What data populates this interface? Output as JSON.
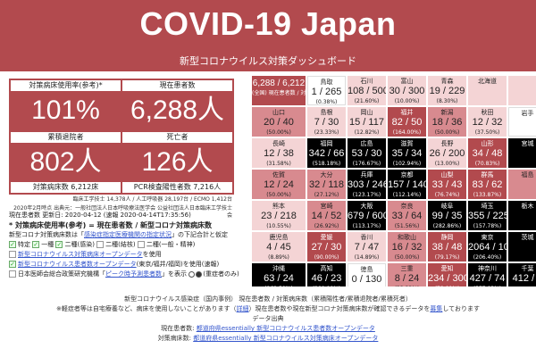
{
  "header": {
    "title": "COVID-19 Japan",
    "subtitle": "新型コロナウイルス対策ダッシュボード"
  },
  "stats": {
    "bed_rate_label": "対策病床使用率(参考)*",
    "bed_rate_value": "101%",
    "current_patients_label": "現在患者数",
    "current_patients_value": "6,288人",
    "discharged_label": "累積退院者",
    "discharged_value": "802人",
    "deaths_label": "死亡者",
    "deaths_value": "126人",
    "beds_sub": "対策病床数 6,212床",
    "pcr_sub": "PCR検査陽性者数 7,216人",
    "footnote1": "臨床工学技士 14,378人 / 人工呼吸器 28,197台 / ECMO 1,412台",
    "footnote2": "2020年2月時点 出典元：一般社団法人日本呼吸療法医学会 公益社団法人日本臨床工学技士会"
  },
  "info": {
    "updated": "現在患者数 更新日: 2020-04-12 (速報 2020-04-14T17:35:56)",
    "definition": "* 対策病床使用率(参考) = 現在患者数 / 新型コロナ対策病床数",
    "source_line_pre": "新型コロナ対策病床数は「",
    "source_link": "感染症指定医療機関の指定状況",
    "source_line_post": "」の下記合計と仮定",
    "options": [
      "特定",
      "一種",
      "二種(感染)",
      "二種(結核)",
      "二種(一般・精神)"
    ],
    "open_data_link": "新型コロナウイルス対策病床オープンデータ",
    "open_data_post": "を使用",
    "patients_link": "新型コロナウイルス患者数オープンデータ",
    "patients_post": "(東京/福井/福岡)を使用(速報)",
    "jmap_pre": "日本医師会総合政策研究機構「",
    "jmap_link": "ピーク時予測患者数",
    "jmap_post": "」を表示",
    "radio1": "(重症者のみ)"
  },
  "prefectures": [
    {
      "name": "6,288 / 6,212",
      "val": "",
      "pct": "(全国) 現在患者数 / 対策病床数*",
      "level": "summary"
    },
    {
      "name": "鳥取",
      "val": "1 / 265",
      "pct": "(0.38%)",
      "level": "lv0"
    },
    {
      "name": "石川",
      "val": "108 / 500",
      "pct": "(21.60%)",
      "level": "lv1"
    },
    {
      "name": "富山",
      "val": "30 / 300",
      "pct": "(10.00%)",
      "level": "lv1"
    },
    {
      "name": "青森",
      "val": "19 / 229",
      "pct": "(8.30%)",
      "level": "lv1"
    },
    {
      "name": "北海道",
      "val": "",
      "pct": "",
      "level": "lv1"
    },
    {
      "name": "",
      "val": "",
      "pct": "",
      "level": "lv1"
    },
    {
      "name": "山口",
      "val": "20 / 40",
      "pct": "(50.00%)",
      "level": "lv2"
    },
    {
      "name": "島根",
      "val": "7 / 30",
      "pct": "(23.33%)",
      "level": "lv1"
    },
    {
      "name": "岡山",
      "val": "15 / 117",
      "pct": "(12.82%)",
      "level": "lv1"
    },
    {
      "name": "福井",
      "val": "82 / 50",
      "pct": "(164.00%)",
      "level": "lv3"
    },
    {
      "name": "新潟",
      "val": "18 / 36",
      "pct": "(50.00%)",
      "level": "lv2"
    },
    {
      "name": "秋田",
      "val": "12 / 32",
      "pct": "(37.50%)",
      "level": "lv1"
    },
    {
      "name": "岩手",
      "val": "",
      "pct": "",
      "level": "lv0"
    },
    {
      "name": "長崎",
      "val": "12 / 38",
      "pct": "(31.58%)",
      "level": "lv1"
    },
    {
      "name": "福岡",
      "val": "342 / 66",
      "pct": "(518.18%)",
      "level": "lv4"
    },
    {
      "name": "広島",
      "val": "53 / 30",
      "pct": "(176.67%)",
      "level": "lv4"
    },
    {
      "name": "滋賀",
      "val": "35 / 34",
      "pct": "(102.94%)",
      "level": "lv4"
    },
    {
      "name": "長野",
      "val": "26 / 200",
      "pct": "(13.00%)",
      "level": "lv1"
    },
    {
      "name": "山形",
      "val": "34 / 48",
      "pct": "(70.83%)",
      "level": "lv3"
    },
    {
      "name": "宮城",
      "val": "",
      "pct": "",
      "level": "lv4"
    },
    {
      "name": "佐賀",
      "val": "12 / 24",
      "pct": "(50.00%)",
      "level": "lv2"
    },
    {
      "name": "大分",
      "val": "32 / 118",
      "pct": "(27.12%)",
      "level": "lv2"
    },
    {
      "name": "兵庫",
      "val": "303 / 246",
      "pct": "(123.17%)",
      "level": "lv4"
    },
    {
      "name": "京都",
      "val": "157 / 140",
      "pct": "(112.14%)",
      "level": "lv4"
    },
    {
      "name": "山梨",
      "val": "33 / 43",
      "pct": "(76.74%)",
      "level": "lv3"
    },
    {
      "name": "群馬",
      "val": "83 / 62",
      "pct": "(133.87%)",
      "level": "lv3"
    },
    {
      "name": "福島",
      "val": "",
      "pct": "",
      "level": "lv2"
    },
    {
      "name": "熊本",
      "val": "23 / 218",
      "pct": "(10.55%)",
      "level": "lv1"
    },
    {
      "name": "宮崎",
      "val": "14 / 52",
      "pct": "(26.92%)",
      "level": "lv2"
    },
    {
      "name": "大阪",
      "val": "679 / 600",
      "pct": "(113.17%)",
      "level": "lv4"
    },
    {
      "name": "奈良",
      "val": "33 / 64",
      "pct": "(51.56%)",
      "level": "lv2"
    },
    {
      "name": "岐阜",
      "val": "99 / 35",
      "pct": "(282.86%)",
      "level": "lv4"
    },
    {
      "name": "埼玉",
      "val": "355 / 225",
      "pct": "(157.78%)",
      "level": "lv4"
    },
    {
      "name": "栃木",
      "val": "",
      "pct": "",
      "level": "lv4"
    },
    {
      "name": "鹿児島",
      "val": "4 / 45",
      "pct": "(8.89%)",
      "level": "lv1"
    },
    {
      "name": "愛媛",
      "val": "27 / 30",
      "pct": "(90.00%)",
      "level": "lv3"
    },
    {
      "name": "香川",
      "val": "7 / 47",
      "pct": "(14.89%)",
      "level": "lv1"
    },
    {
      "name": "和歌山",
      "val": "16 / 32",
      "pct": "(50.00%)",
      "level": "lv2"
    },
    {
      "name": "静岡",
      "val": "38 / 48",
      "pct": "(79.17%)",
      "level": "lv3"
    },
    {
      "name": "東京",
      "val": "2064 / 1000",
      "pct": "(206.40%)",
      "level": "lv4"
    },
    {
      "name": "茨城",
      "val": "",
      "pct": "",
      "level": "lv4"
    },
    {
      "name": "沖縄",
      "val": "63 / 24",
      "pct": "(262.50%)",
      "level": "lv4"
    },
    {
      "name": "高知",
      "val": "46 / 23",
      "pct": "(200.00%)",
      "level": "lv4"
    },
    {
      "name": "徳島",
      "val": "0 / 130",
      "pct": "(0.00%)",
      "level": "lv0"
    },
    {
      "name": "三重",
      "val": "8 / 24",
      "pct": "(33.33%)",
      "level": "lv2"
    },
    {
      "name": "愛知",
      "val": "234 / 300",
      "pct": "(78.00%)",
      "level": "lv3"
    },
    {
      "name": "神奈川",
      "val": "427 / 74",
      "pct": "(577.03%)",
      "level": "lv4"
    },
    {
      "name": "千葉",
      "val": "412 / 2",
      "pct": "",
      "level": "lv4"
    }
  ],
  "bottom": {
    "line1": "新型コロナウイルス感染症（国内事例） 現在患者数 / 対策病床数（累積陽性者/累積退院者/累積死者）",
    "line2_pre": "※軽症者等は自宅療養など、病床を使用しないことがあります（",
    "line2_link": "詳細",
    "line2_mid": "）現在患者数や現在新型コロナ対策病床数が確認できるデータを",
    "line2_link2": "募集",
    "line2_post": "しております",
    "line3": "データ出典",
    "line4_pre": "現在患者数: ",
    "line4_link": "都道府県essentially 新型コロナウイルス患者数オープンデータ",
    "line5_pre": "対策病床数: ",
    "line5_link": "都道府県essentially 新型コロナウイルス対策病床オープンデータ"
  }
}
